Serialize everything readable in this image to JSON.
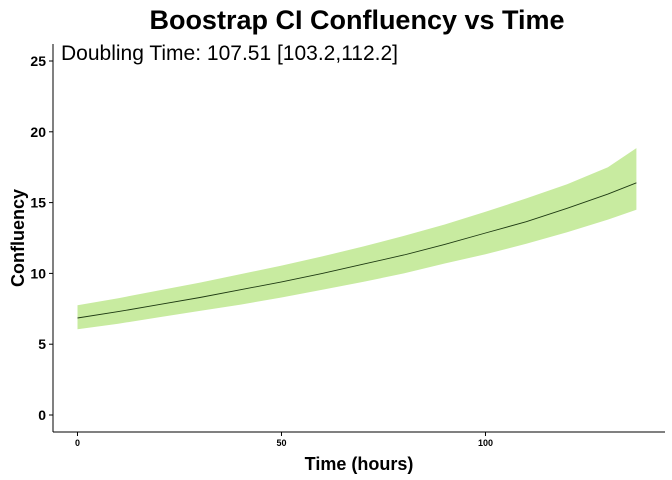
{
  "chart_data": {
    "type": "area",
    "title": "Boostrap CI Confluency vs Time",
    "xlabel": "Time (hours)",
    "ylabel": "Confluency",
    "annotation": "Doubling Time: 107.51 [103.2,112.2]",
    "xlim": [
      -6,
      144
    ],
    "ylim": [
      -1.2,
      26.2
    ],
    "xticks": [
      0,
      50,
      100
    ],
    "yticks": [
      0,
      5,
      10,
      15,
      20,
      25
    ],
    "grid": false,
    "legend": "none",
    "colors": {
      "band": "#c8eba0",
      "line": "#1e3a12",
      "axis": "#000000"
    },
    "series": [
      {
        "x": [
          0,
          10,
          20,
          30,
          40,
          50,
          60,
          70,
          80,
          90,
          100,
          110,
          120,
          130,
          137
        ],
        "y": [
          6.85,
          7.3,
          7.8,
          8.3,
          8.85,
          9.4,
          10.0,
          10.65,
          11.3,
          12.05,
          12.85,
          13.65,
          14.6,
          15.6,
          16.4
        ],
        "lower": [
          6.05,
          6.45,
          6.9,
          7.35,
          7.8,
          8.3,
          8.85,
          9.4,
          10.0,
          10.7,
          11.35,
          12.1,
          12.9,
          13.8,
          14.5
        ],
        "upper": [
          7.75,
          8.25,
          8.8,
          9.35,
          9.95,
          10.55,
          11.2,
          11.9,
          12.65,
          13.45,
          14.35,
          15.3,
          16.3,
          17.5,
          18.85
        ]
      }
    ]
  }
}
